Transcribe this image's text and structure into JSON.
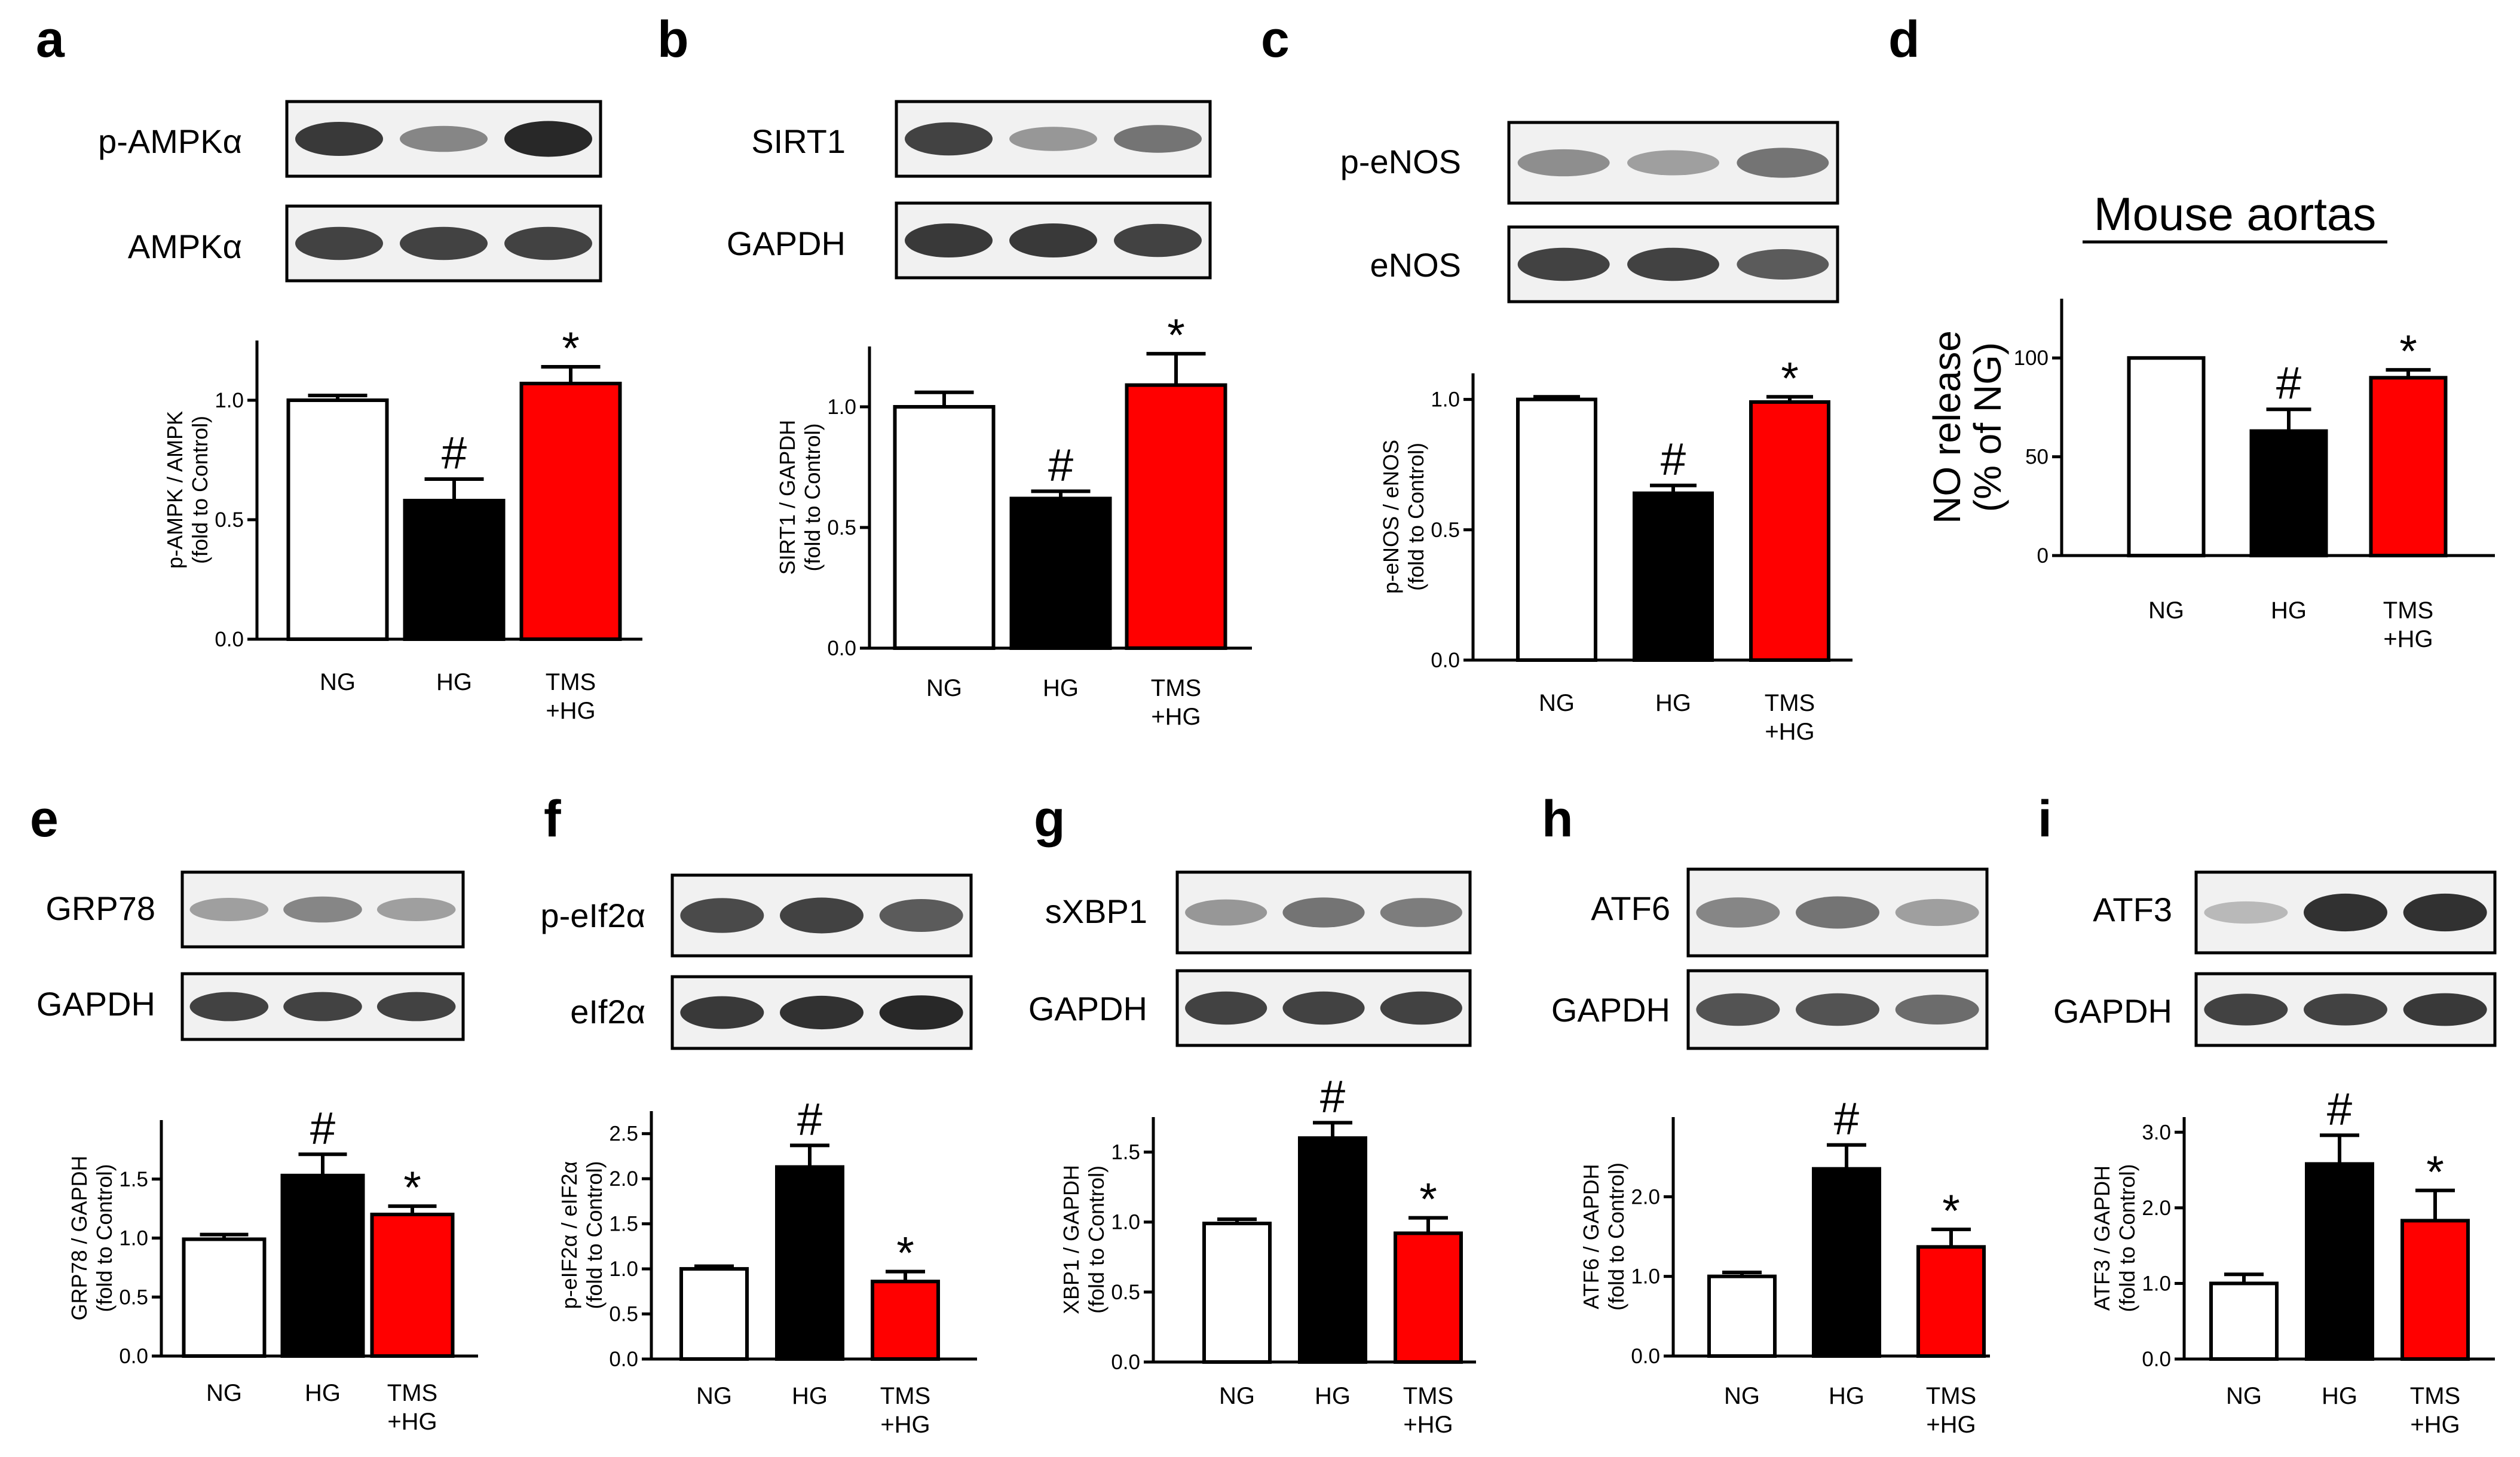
{
  "title": "Mouse aortas",
  "colors": {
    "NG": "#ffffff",
    "HG": "#000000",
    "TMS_HG": "#ff0000"
  },
  "panels": [
    {
      "label": "a",
      "blots": [
        "p-AMPKα",
        "AMPKα"
      ],
      "ylabel": [
        "p-AMPK / AMPK",
        "(fold to Control)"
      ]
    },
    {
      "label": "b",
      "blots": [
        "SIRT1",
        "GAPDH"
      ],
      "ylabel": [
        "SIRT1 / GAPDH",
        "(fold to Control)"
      ]
    },
    {
      "label": "c",
      "blots": [
        "p-eNOS",
        "eNOS"
      ],
      "ylabel": [
        "p-eNOS / eNOS",
        "(fold to Control)"
      ]
    },
    {
      "label": "d",
      "blots": [],
      "ylabel": [
        "NO release",
        "(% of NG)"
      ]
    },
    {
      "label": "e",
      "blots": [
        "GRP78",
        "GAPDH"
      ],
      "ylabel": [
        "GRP78 / GAPDH",
        "(fold to Control)"
      ]
    },
    {
      "label": "f",
      "blots": [
        "p-eIf2α",
        "eIf2α"
      ],
      "ylabel": [
        "p-eIF2α / eIF2α",
        "(fold to Control)"
      ]
    },
    {
      "label": "g",
      "blots": [
        "sXBP1",
        "GAPDH"
      ],
      "ylabel": [
        "XBP1 / GAPDH",
        "(fold to Control)"
      ]
    },
    {
      "label": "h",
      "blots": [
        "ATF6",
        "GAPDH"
      ],
      "ylabel": [
        "ATF6 / GAPDH",
        "(fold to Control)"
      ]
    },
    {
      "label": "i",
      "blots": [
        "ATF3",
        "GAPDH"
      ],
      "ylabel": [
        "ATF3 / GAPDH",
        "(fold to Control)"
      ]
    }
  ],
  "chart_data": [
    {
      "type": "bar",
      "categories": [
        "NG",
        "HG",
        "TMS\n+HG"
      ],
      "values": [
        1.0,
        0.58,
        1.07
      ],
      "errors": [
        0.02,
        0.09,
        0.07
      ],
      "significance": [
        "",
        "#",
        "*"
      ],
      "ylim": [
        0,
        1.25
      ],
      "yticks": [
        "0.0",
        "0.5",
        "1.0"
      ]
    },
    {
      "type": "bar",
      "categories": [
        "NG",
        "HG",
        "TMS\n+HG"
      ],
      "values": [
        1.0,
        0.62,
        1.09
      ],
      "errors": [
        0.06,
        0.03,
        0.13
      ],
      "significance": [
        "",
        "#",
        "*"
      ],
      "ylim": [
        0,
        1.25
      ],
      "yticks": [
        "0.0",
        "0.5",
        "1.0"
      ]
    },
    {
      "type": "bar",
      "categories": [
        "NG",
        "HG",
        "TMS\n+HG"
      ],
      "values": [
        1.0,
        0.64,
        0.99
      ],
      "errors": [
        0.01,
        0.03,
        0.02
      ],
      "significance": [
        "",
        "#",
        "*"
      ],
      "ylim": [
        0,
        1.1
      ],
      "yticks": [
        "0.0",
        "0.5",
        "1.0"
      ]
    },
    {
      "type": "bar",
      "categories": [
        "NG",
        "HG",
        "TMS\n+HG"
      ],
      "values": [
        100,
        63,
        90
      ],
      "errors": [
        0,
        11,
        4
      ],
      "significance": [
        "",
        "#",
        "*"
      ],
      "ylim": [
        0,
        130
      ],
      "yticks": [
        "0",
        "50",
        "100"
      ]
    },
    {
      "type": "bar",
      "categories": [
        "NG",
        "HG",
        "TMS\n+HG"
      ],
      "values": [
        0.99,
        1.53,
        1.2
      ],
      "errors": [
        0.04,
        0.18,
        0.07
      ],
      "significance": [
        "",
        "#",
        "*"
      ],
      "ylim": [
        0,
        2.0
      ],
      "yticks": [
        "0.0",
        "0.5",
        "1.0",
        "1.5"
      ]
    },
    {
      "type": "bar",
      "categories": [
        "NG",
        "HG",
        "TMS\n+HG"
      ],
      "values": [
        1.0,
        2.13,
        0.86
      ],
      "errors": [
        0.03,
        0.24,
        0.11
      ],
      "significance": [
        "",
        "#",
        "*"
      ],
      "ylim": [
        0,
        2.75
      ],
      "yticks": [
        "0.0",
        "0.5",
        "1.0",
        "1.5",
        "2.0",
        "2.5"
      ]
    },
    {
      "type": "bar",
      "categories": [
        "NG",
        "HG",
        "TMS\n+HG"
      ],
      "values": [
        0.99,
        1.6,
        0.92
      ],
      "errors": [
        0.03,
        0.11,
        0.11
      ],
      "significance": [
        "",
        "#",
        "*"
      ],
      "ylim": [
        0,
        1.75
      ],
      "yticks": [
        "0.0",
        "0.5",
        "1.0",
        "1.5"
      ]
    },
    {
      "type": "bar",
      "categories": [
        "NG",
        "HG",
        "TMS\n+HG"
      ],
      "values": [
        1.0,
        2.35,
        1.37
      ],
      "errors": [
        0.05,
        0.3,
        0.22
      ],
      "significance": [
        "",
        "#",
        "*"
      ],
      "ylim": [
        0,
        3.0
      ],
      "yticks": [
        "0.0",
        "1.0",
        "2.0"
      ]
    },
    {
      "type": "bar",
      "categories": [
        "NG",
        "HG",
        "TMS\n+HG"
      ],
      "values": [
        1.0,
        2.58,
        1.83
      ],
      "errors": [
        0.12,
        0.38,
        0.4
      ],
      "significance": [
        "",
        "#",
        "*"
      ],
      "ylim": [
        0,
        3.2
      ],
      "yticks": [
        "0.0",
        "1.0",
        "2.0",
        "3.0"
      ]
    }
  ]
}
